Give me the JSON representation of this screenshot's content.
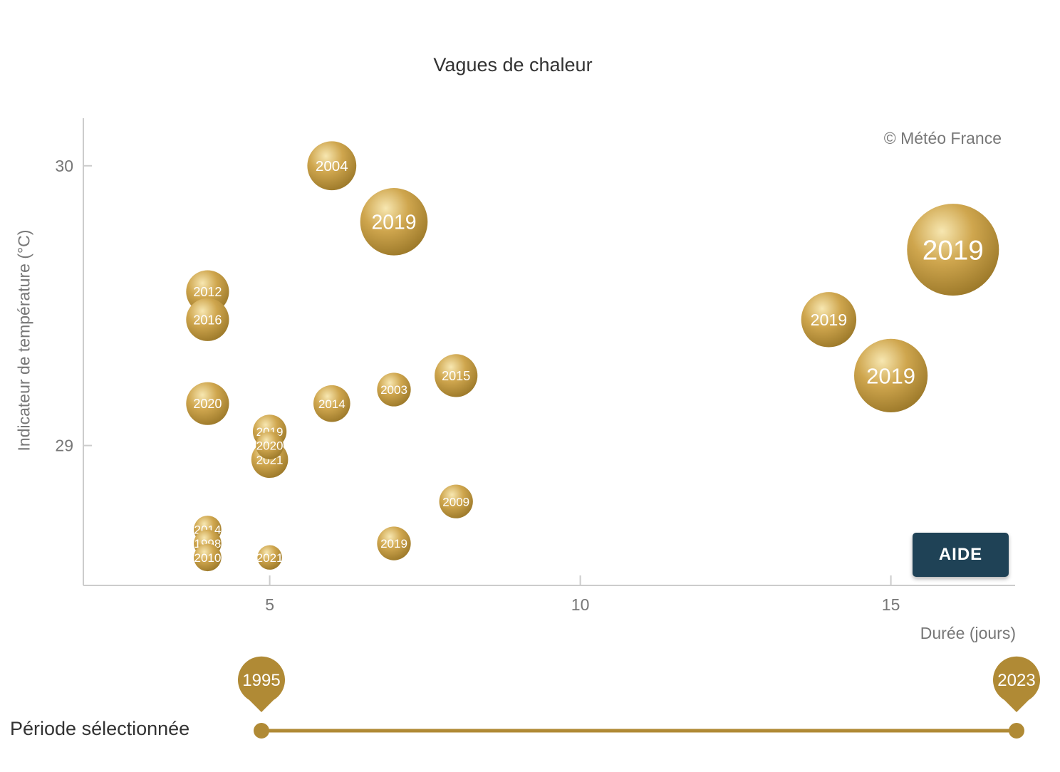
{
  "colors": {
    "bubble_light": "#f7e7b1",
    "bubble_mid": "#cfa64e",
    "bubble_dark": "#9a7728",
    "slider": "#b08a35",
    "button": "#1f4256",
    "axis": "#cccccc",
    "text_muted": "#777777"
  },
  "credit": "© Météo France",
  "help_button": {
    "label": "AIDE"
  },
  "period": {
    "label": "Période sélectionnée",
    "start": "1995",
    "end": "2023"
  },
  "chart_data": {
    "type": "bubble",
    "title": "Vagues de chaleur",
    "xlabel": "Durée (jours)",
    "ylabel": "Indicateur de température (°C)",
    "xlim": [
      2,
      17
    ],
    "ylim": [
      28.5,
      30.17
    ],
    "xticks": [
      5,
      10,
      15
    ],
    "yticks": [
      29,
      30
    ],
    "grid": false,
    "points": [
      {
        "label": "2004",
        "x": 6,
        "y": 30.0,
        "size": 8
      },
      {
        "label": "2019",
        "x": 7,
        "y": 29.8,
        "size": 11
      },
      {
        "label": "2019",
        "x": 16,
        "y": 29.7,
        "size": 15
      },
      {
        "label": "2012",
        "x": 4,
        "y": 29.55,
        "size": 7
      },
      {
        "label": "2016",
        "x": 4,
        "y": 29.45,
        "size": 7
      },
      {
        "label": "2019",
        "x": 14,
        "y": 29.45,
        "size": 9
      },
      {
        "label": "2015",
        "x": 8,
        "y": 29.25,
        "size": 7
      },
      {
        "label": "2019",
        "x": 15,
        "y": 29.25,
        "size": 12
      },
      {
        "label": "2003",
        "x": 7,
        "y": 29.2,
        "size": 5.5
      },
      {
        "label": "2020",
        "x": 4,
        "y": 29.15,
        "size": 7
      },
      {
        "label": "2014",
        "x": 6,
        "y": 29.15,
        "size": 6
      },
      {
        "label": "2019",
        "x": 5,
        "y": 29.05,
        "size": 5.5
      },
      {
        "label": "2020",
        "x": 5,
        "y": 29.0,
        "size": 4.5
      },
      {
        "label": "2021",
        "x": 5,
        "y": 28.95,
        "size": 6
      },
      {
        "label": "2009",
        "x": 8,
        "y": 28.8,
        "size": 5.5
      },
      {
        "label": "2014",
        "x": 4,
        "y": 28.7,
        "size": 4.5
      },
      {
        "label": "1998",
        "x": 4,
        "y": 28.65,
        "size": 4.5
      },
      {
        "label": "2019",
        "x": 7,
        "y": 28.65,
        "size": 5.5
      },
      {
        "label": "2010",
        "x": 4,
        "y": 28.6,
        "size": 4.5
      },
      {
        "label": "2021",
        "x": 5,
        "y": 28.6,
        "size": 4
      }
    ]
  }
}
